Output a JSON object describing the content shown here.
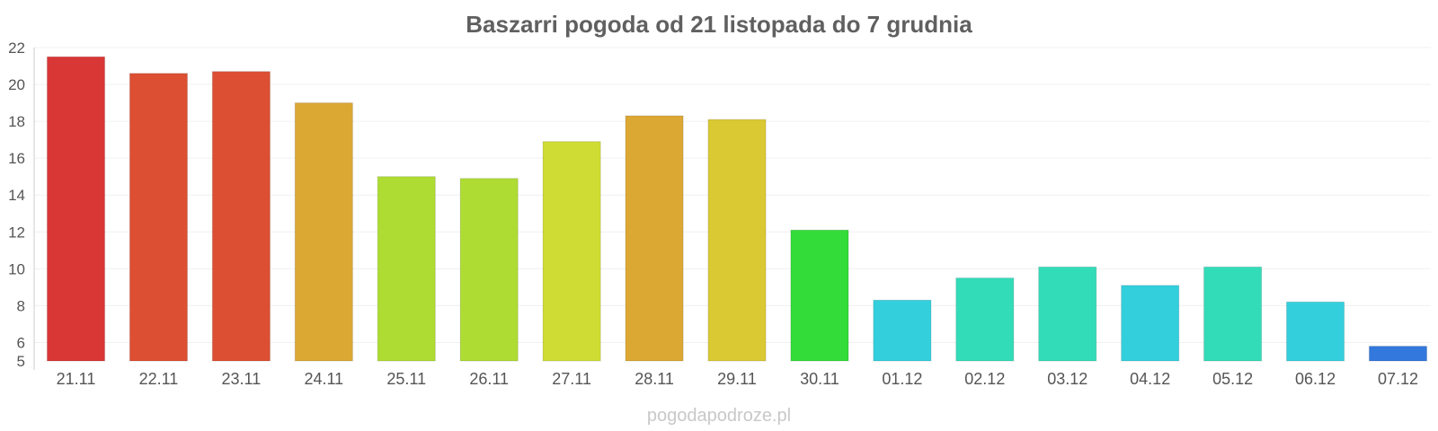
{
  "chart_data": {
    "type": "bar",
    "title": "Baszarri pogoda od 21 listopada do 7 grudnia",
    "xlabel": "",
    "ylabel": "",
    "ylim": [
      5,
      22
    ],
    "yticks": [
      5,
      6,
      8,
      10,
      12,
      14,
      16,
      18,
      20,
      22
    ],
    "grid": true,
    "categories": [
      "21.11",
      "22.11",
      "23.11",
      "24.11",
      "25.11",
      "26.11",
      "27.11",
      "28.11",
      "29.11",
      "30.11",
      "01.12",
      "02.12",
      "03.12",
      "04.12",
      "05.12",
      "06.12",
      "07.12"
    ],
    "values": [
      21.5,
      20.6,
      20.7,
      19.0,
      15.0,
      14.9,
      16.9,
      18.3,
      18.1,
      12.1,
      8.3,
      9.5,
      10.1,
      9.1,
      10.1,
      8.2,
      5.8
    ],
    "colors": [
      "#d93636",
      "#dc4f33",
      "#dc4f33",
      "#dca834",
      "#aedc33",
      "#aedc33",
      "#cfdc33",
      "#dca834",
      "#dac933",
      "#33dc38",
      "#33cfdc",
      "#33dcb8",
      "#33dcb8",
      "#33cfdc",
      "#33dcb8",
      "#33cfdc",
      "#3378dc"
    ]
  },
  "credit": "pogodapodroze.pl"
}
